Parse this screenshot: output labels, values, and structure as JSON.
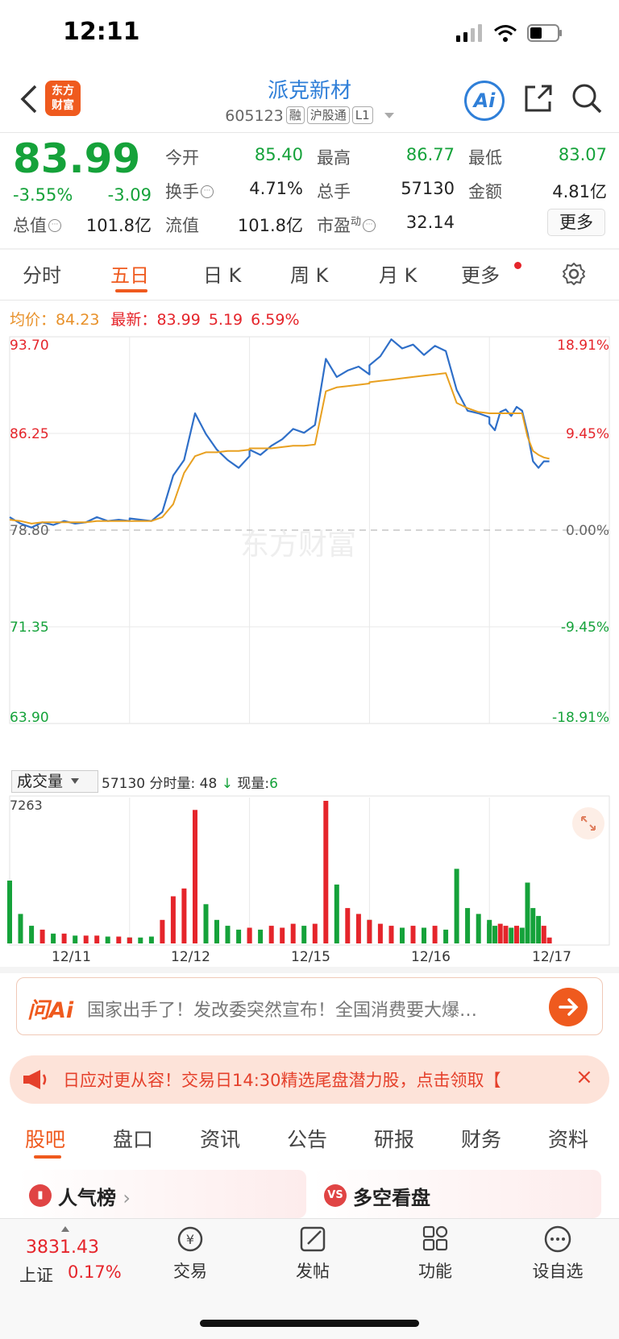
{
  "status": {
    "time": "12:11"
  },
  "header": {
    "logo_line1": "东方",
    "logo_line2": "财富",
    "stock_name": "派克新材",
    "code": "605123",
    "tags": [
      "融",
      "沪股通",
      "L1"
    ],
    "ai_label": "Ai"
  },
  "quote": {
    "price": "83.99",
    "change_pct": "-3.55%",
    "change": "-3.09",
    "fields": [
      {
        "label": "今开",
        "value": "85.40",
        "color": "green"
      },
      {
        "label": "最高",
        "value": "86.77",
        "color": "green"
      },
      {
        "label": "最低",
        "value": "83.07",
        "color": "green"
      },
      {
        "label": "换手",
        "value": "4.71%",
        "color": "black"
      },
      {
        "label": "总手",
        "value": "57130",
        "color": "black"
      },
      {
        "label": "金额",
        "value": "4.81亿",
        "color": "black"
      },
      {
        "label": "总值",
        "value": "101.8亿",
        "color": "black"
      },
      {
        "label": "流值",
        "value": "101.8亿",
        "color": "black"
      },
      {
        "label": "市盈",
        "value": "32.14",
        "color": "black"
      }
    ],
    "pe_superscript": "动",
    "more_label": "更多"
  },
  "chart_tabs": [
    "分时",
    "五日",
    "日 K",
    "周 K",
    "月 K",
    "更多"
  ],
  "avg_bar": {
    "avg_label": "均价：",
    "avg_value": "84.23",
    "latest_label": "最新：",
    "latest_value": "83.99",
    "latest_extra1": "5.19",
    "latest_extra2": "6.59%"
  },
  "watermark": "东方财富",
  "chart_data": {
    "type": "line",
    "y_left_ticks": [
      "93.70",
      "86.25",
      "78.80",
      "71.35",
      "63.90"
    ],
    "y_right_ticks": [
      "18.91%",
      "9.45%",
      "0.00%",
      "-9.45%",
      "-18.91%"
    ],
    "ylim": [
      63.9,
      93.7
    ],
    "reference": 78.8,
    "days": [
      "12/11",
      "12/12",
      "12/15",
      "12/16",
      "12/17"
    ],
    "series": [
      {
        "values": [
          79.8,
          79.3,
          79.0,
          79.4,
          79.2,
          79.5,
          79.3,
          79.4,
          79.8,
          79.5,
          79.6,
          79.5,
          79.7,
          79.6,
          79.5,
          80.2,
          83.0,
          84.2,
          87.8,
          86.2,
          85.0,
          84.2,
          83.6,
          84.5,
          85.0,
          84.6,
          85.3,
          85.8,
          86.6,
          86.3,
          86.9,
          92.0,
          90.6,
          91.1,
          91.4,
          90.8,
          91.5,
          92.2,
          93.5,
          92.8,
          93.1,
          92.3,
          93.0,
          92.6,
          89.6,
          88.0,
          87.8,
          87.5,
          87.0,
          86.5,
          87.9,
          88.1,
          87.6,
          88.3,
          88.0,
          86.3,
          84.1,
          83.6,
          84.1,
          84.1
        ]
      },
      {
        "values": [
          79.6,
          79.5,
          79.3,
          79.4,
          79.4,
          79.4,
          79.4,
          79.4,
          79.5,
          79.5,
          79.5,
          79.5,
          79.5,
          79.5,
          79.5,
          79.8,
          80.8,
          83.2,
          84.5,
          84.8,
          84.8,
          84.9,
          84.9,
          85.0,
          85.1,
          85.1,
          85.1,
          85.2,
          85.3,
          85.3,
          85.4,
          89.5,
          89.8,
          89.9,
          90.0,
          90.1,
          90.2,
          90.3,
          90.4,
          90.5,
          90.6,
          90.7,
          90.8,
          90.9,
          88.6,
          88.2,
          87.9,
          87.8,
          87.8,
          87.8,
          87.8,
          87.8,
          87.8,
          87.8,
          87.8,
          86.0,
          84.9,
          84.6,
          84.4,
          84.3
        ]
      }
    ],
    "volume": {
      "label": "成交量",
      "total": "57130",
      "minute_label": "分时量:",
      "minute_value": "48",
      "current_label": "现量:",
      "current_value": "6",
      "max_tick": "7263",
      "values": [
        3200,
        1500,
        900,
        700,
        500,
        500,
        400,
        400,
        400,
        350,
        350,
        300,
        300,
        300,
        350,
        1200,
        2400,
        2800,
        6800,
        2000,
        1200,
        900,
        700,
        700,
        800,
        700,
        900,
        800,
        1000,
        900,
        1000,
        7263,
        3000,
        1800,
        1500,
        1200,
        1200,
        1000,
        900,
        800,
        900,
        800,
        900,
        700,
        3800,
        1800,
        1500,
        1200,
        1000,
        900,
        1000,
        900,
        800,
        900,
        800,
        3100,
        1800,
        1400,
        900,
        300
      ]
    }
  },
  "ai_banner": {
    "logo": "问Ai",
    "text": "国家出手了！发改委突然宣布！全国消费要大爆…"
  },
  "notice": {
    "text": "日应对更从容！交易日14:30精选尾盘潜力股，点击领取【",
    "close": "×"
  },
  "bottom_tabs": [
    "股吧",
    "盘口",
    "资讯",
    "公告",
    "研报",
    "财务",
    "资料"
  ],
  "cards": [
    {
      "icon": "hot-rank-icon",
      "title": "人气榜",
      "chevron": "›"
    },
    {
      "icon_text": "VS",
      "title": "多空看盘"
    }
  ],
  "bottom_nav": {
    "index_value": "3831.43",
    "index_name": "上证",
    "index_pct": "0.17%",
    "items": [
      "交易",
      "发帖",
      "功能",
      "设自选"
    ],
    "trade_glyph": "¥"
  },
  "colors": {
    "up": "#e5252b",
    "down": "#15a23a",
    "accent": "#ef5a1e",
    "line": "#2f6fc8",
    "avg": "#e8a020"
  }
}
